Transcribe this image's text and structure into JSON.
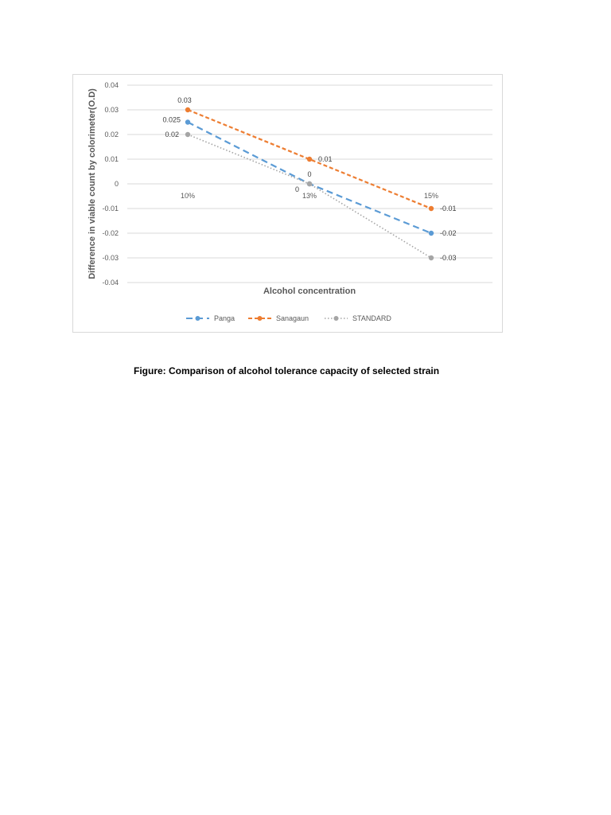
{
  "caption": "Figure: Comparison of alcohol tolerance capacity of selected strain",
  "chart_data": {
    "type": "line",
    "title": "",
    "xlabel": "Alcohol  concentration",
    "ylabel": "Difference in viable count by colorimeter(O.D)",
    "categories": [
      "10%",
      "13%",
      "15%"
    ],
    "ylim": [
      -0.04,
      0.04
    ],
    "yticks": [
      0.04,
      0.03,
      0.02,
      0.01,
      0,
      -0.01,
      -0.02,
      -0.03,
      -0.04
    ],
    "ytick_labels": [
      "0.04",
      "0.03",
      "0.02",
      "0.01",
      "0",
      "-0.01",
      "-0.02",
      "-0.03",
      "-0.04"
    ],
    "grid": true,
    "legend_position": "bottom",
    "series": [
      {
        "name": "Panga",
        "values": [
          0.025,
          0,
          -0.02
        ],
        "labels": [
          "0.025",
          "0",
          "-0.02"
        ],
        "color": "#5b9bd5",
        "style": "dashed-long"
      },
      {
        "name": "Sanagaun",
        "values": [
          0.03,
          0.01,
          -0.01
        ],
        "labels": [
          "0.03",
          "0.01",
          "-0.01"
        ],
        "color": "#ed7d31",
        "style": "dashed"
      },
      {
        "name": "STANDARD",
        "values": [
          0.02,
          0,
          -0.03
        ],
        "labels": [
          "0.02",
          "0",
          "-0.03"
        ],
        "color": "#a5a5a5",
        "style": "dotted"
      }
    ]
  }
}
